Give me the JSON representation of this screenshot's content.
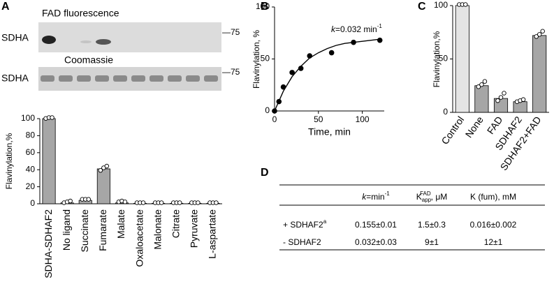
{
  "panel_labels": [
    "A",
    "B",
    "C",
    "D"
  ],
  "gel": {
    "top_title": "FAD fluorescence",
    "bottom_title": "Coomassie",
    "row_label": "SDHA",
    "marker": "—75"
  },
  "chart_data": [
    {
      "type": "bar",
      "ylabel": "Flavinylation,%",
      "categories": [
        "SDHA-SDHAF2",
        "No ligand",
        "Succinate",
        "Fumarate",
        "Malate",
        "Oxaloacetate",
        "Malonate",
        "Citrate",
        "Pyruvate",
        "L-aspartate"
      ],
      "values": [
        100,
        1,
        4,
        41,
        1,
        0.5,
        0.5,
        0.5,
        0.5,
        0.5
      ],
      "replicates": [
        [
          99,
          100,
          100
        ],
        [
          0,
          1,
          2
        ],
        [
          4,
          4,
          4
        ],
        [
          38,
          41,
          43
        ],
        [
          1,
          2,
          1
        ],
        [
          0,
          0,
          0
        ],
        [
          0,
          0,
          0
        ],
        [
          0,
          0,
          0
        ],
        [
          0,
          0,
          0
        ],
        [
          0,
          0,
          0
        ]
      ],
      "colors": [
        "#a6a6a6"
      ],
      "ylim": [
        0,
        100
      ],
      "yticks": [
        0,
        20,
        40,
        60,
        80,
        100
      ]
    },
    {
      "type": "scatter",
      "xlabel": "Time, min",
      "ylabel": "Flavinylation, %",
      "annotation": {
        "symbol": "k",
        "text": "=0.032 min",
        "superscript": "-1"
      },
      "x": [
        0,
        5,
        10,
        20,
        30,
        40,
        65,
        90,
        120
      ],
      "values": [
        0,
        9,
        23,
        37,
        41,
        53,
        56,
        66,
        68
      ],
      "fit": {
        "x": [
          0,
          10,
          20,
          30,
          40,
          50,
          60,
          70,
          80,
          90,
          100,
          110,
          120
        ],
        "values": [
          0,
          19,
          33,
          43,
          51,
          56,
          60,
          63,
          65,
          66,
          67,
          68,
          69
        ]
      },
      "xlim": [
        0,
        125
      ],
      "xticks": [
        0,
        50,
        100
      ],
      "ylim": [
        0,
        100
      ],
      "yticks": [
        0,
        50,
        100
      ]
    },
    {
      "type": "bar",
      "ylabel": "Flavinylation,%",
      "categories": [
        "Control",
        "None",
        "FAD",
        "SDHAF2",
        "SDHAF2+FAD"
      ],
      "values": [
        100,
        25,
        13,
        10,
        72
      ],
      "replicates": [
        [
          100,
          100,
          100
        ],
        [
          23,
          25,
          28
        ],
        [
          10,
          13,
          17
        ],
        [
          9,
          10,
          11
        ],
        [
          70,
          72,
          75
        ]
      ],
      "colors": [
        "#e4e4e4",
        "#a6a6a6",
        "#a6a6a6",
        "#a6a6a6",
        "#a6a6a6"
      ],
      "ylim": [
        0,
        100
      ],
      "yticks": [
        0,
        50,
        100
      ]
    }
  ],
  "table": {
    "header": [
      {
        "italic": "k",
        "text": "=min",
        "sup": "-1"
      },
      {
        "text": "K",
        "sub": "app",
        "sup": "FAD",
        "tail": ", μM"
      },
      {
        "text": "K (fum), mM"
      }
    ],
    "rows": [
      {
        "label": {
          "text": "+ SDHAF2",
          "sup": "a"
        },
        "cells": [
          "0.155±0.01",
          "1.5±0.3",
          "0.016±0.002"
        ]
      },
      {
        "label": {
          "text": "- SDHAF2"
        },
        "cells": [
          "0.032±0.03",
          "9±1",
          "12±1"
        ]
      }
    ]
  }
}
